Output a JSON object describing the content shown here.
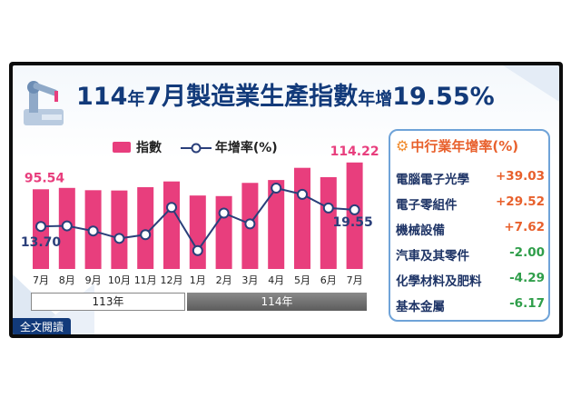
{
  "title_parts": [
    "114",
    "年",
    "7月",
    "製造業生產指數",
    "年增",
    "19.55%"
  ],
  "legend": {
    "bar": "指數",
    "line": "年增率(%)"
  },
  "year_groups": [
    "113年",
    "114年"
  ],
  "read_more": "全文閱讀",
  "industry_panel": {
    "title": "中行業年增率(%)",
    "rows": [
      {
        "name": "電腦電子光學",
        "value": "+39.03"
      },
      {
        "name": "電子零組件",
        "value": "+29.52"
      },
      {
        "name": "機械設備",
        "value": "+7.62"
      },
      {
        "name": "汽車及其零件",
        "value": "-2.00"
      },
      {
        "name": "化學材料及肥料",
        "value": "-4.29"
      },
      {
        "name": "基本金屬",
        "value": "-6.17"
      }
    ]
  },
  "colors": {
    "bar": "#e83e7d",
    "line": "#2a3f7a",
    "title": "#123a7a",
    "positive": "#e8602c",
    "negative": "#2f9e4a"
  },
  "chart_data": {
    "type": "bar",
    "categories": [
      "7月",
      "8月",
      "9月",
      "10月",
      "11月",
      "12月",
      "1月",
      "2月",
      "3月",
      "4月",
      "5月",
      "6月",
      "7月"
    ],
    "series": [
      {
        "name": "指數",
        "type": "bar",
        "values": [
          95.54,
          96.5,
          94.9,
          94.7,
          97.0,
          101.0,
          91.2,
          90.8,
          100.0,
          102.0,
          110.5,
          104.0,
          114.22
        ]
      },
      {
        "name": "年增率(%)",
        "type": "line",
        "values": [
          13.7,
          13.9,
          12.1,
          9.5,
          10.8,
          20.4,
          5.2,
          18.4,
          14.6,
          27.2,
          25.0,
          20.2,
          19.55
        ]
      }
    ],
    "data_labels": [
      {
        "series": 0,
        "index": 0,
        "text": "95.54"
      },
      {
        "series": 1,
        "index": 0,
        "text": "13.70"
      },
      {
        "series": 0,
        "index": 12,
        "text": "114.22"
      },
      {
        "series": 1,
        "index": 12,
        "text": "19.55"
      }
    ],
    "grid": false,
    "legend_position": "top-left"
  }
}
